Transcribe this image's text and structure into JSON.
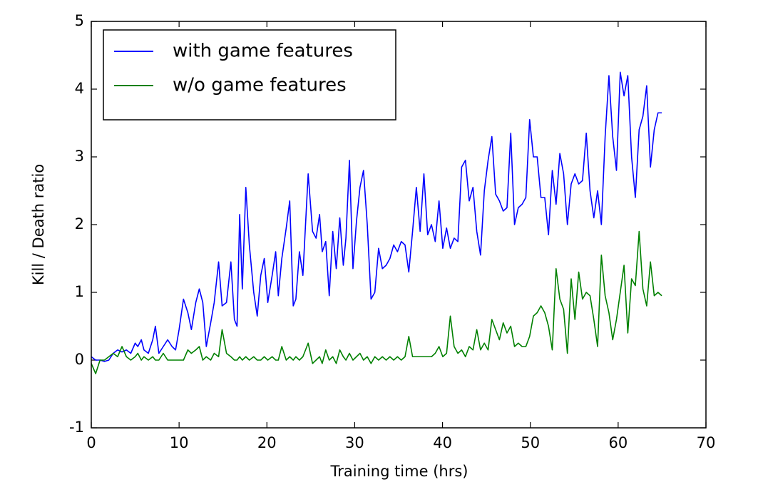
{
  "chart_data": {
    "type": "line",
    "xlabel": "Training time (hrs)",
    "ylabel": "Kill / Death ratio",
    "xlim": [
      0,
      70
    ],
    "xticks": [
      0,
      10,
      20,
      30,
      40,
      50,
      60,
      70
    ],
    "ylim": [
      -1,
      5
    ],
    "yticks": [
      -1,
      0,
      1,
      2,
      3,
      4,
      5
    ],
    "grid": false,
    "legend": "upper left",
    "x": [
      0,
      0.5,
      1,
      1.5,
      2,
      2.5,
      3,
      3.5,
      4,
      4.5,
      5,
      5.3,
      5.7,
      6,
      6.5,
      7,
      7.3,
      7.7,
      8.2,
      8.7,
      9.2,
      9.6,
      10,
      10.5,
      11,
      11.4,
      11.9,
      12.3,
      12.7,
      13.1,
      13.6,
      14,
      14.5,
      14.9,
      15.4,
      15.9,
      16.3,
      16.6,
      16.9,
      17.2,
      17.6,
      18,
      18.5,
      18.9,
      19.3,
      19.7,
      20.1,
      20.6,
      21,
      21.3,
      21.7,
      22.2,
      22.6,
      23,
      23.3,
      23.7,
      24.1,
      24.7,
      25.2,
      25.6,
      26,
      26.3,
      26.7,
      27.1,
      27.5,
      27.9,
      28.3,
      28.7,
      29,
      29.4,
      29.8,
      30.2,
      30.6,
      31,
      31.43,
      31.86,
      32.29,
      32.72,
      33.15,
      33.58,
      34.01,
      34.44,
      34.87,
      35.3,
      35.73,
      36.16,
      36.59,
      37.02,
      37.45,
      37.88,
      38.31,
      38.74,
      39.17,
      39.6,
      40.03,
      40.46,
      40.89,
      41.32,
      41.75,
      42.18,
      42.61,
      43.04,
      43.47,
      43.9,
      44.33,
      44.76,
      45.19,
      45.62,
      46.05,
      46.48,
      46.91,
      47.34,
      47.77,
      48.2,
      48.63,
      49.06,
      49.49,
      49.92,
      50.35,
      50.78,
      51.21,
      51.64,
      52.07,
      52.5,
      52.93,
      53.36,
      53.79,
      54.22,
      54.65,
      55.08,
      55.51,
      55.94,
      56.37,
      56.8,
      57.23,
      57.66,
      58.09,
      58.52,
      58.95,
      59.38,
      59.81,
      60.24,
      60.67,
      61.1,
      61.53,
      61.96,
      62.39,
      62.82,
      63.25,
      63.68,
      64.11,
      64.54,
      64.97
    ],
    "series": [
      {
        "name": "with game features",
        "color": "#0000ff",
        "values": [
          0.05,
          0.0,
          0.0,
          -0.02,
          0.0,
          0.1,
          0.15,
          0.12,
          0.15,
          0.1,
          0.25,
          0.2,
          0.3,
          0.15,
          0.1,
          0.3,
          0.5,
          0.1,
          0.2,
          0.3,
          0.2,
          0.15,
          0.45,
          0.9,
          0.7,
          0.45,
          0.85,
          1.05,
          0.85,
          0.2,
          0.55,
          0.85,
          1.45,
          0.8,
          0.85,
          1.45,
          0.6,
          0.5,
          2.15,
          1.05,
          2.55,
          1.7,
          1.0,
          0.65,
          1.25,
          1.5,
          0.85,
          1.25,
          1.6,
          0.95,
          1.5,
          1.95,
          2.35,
          0.8,
          0.9,
          1.6,
          1.25,
          2.75,
          1.9,
          1.8,
          2.15,
          1.6,
          1.75,
          0.95,
          1.9,
          1.35,
          2.1,
          1.4,
          1.8,
          2.95,
          1.35,
          2.05,
          2.55,
          2.8,
          2.0,
          0.9,
          1.0,
          1.65,
          1.35,
          1.4,
          1.5,
          1.7,
          1.6,
          1.75,
          1.7,
          1.3,
          1.9,
          2.55,
          1.9,
          2.75,
          1.85,
          2.0,
          1.75,
          2.35,
          1.65,
          1.95,
          1.65,
          1.8,
          1.75,
          2.85,
          2.95,
          2.35,
          2.55,
          1.9,
          1.55,
          2.5,
          2.95,
          3.3,
          2.45,
          2.35,
          2.2,
          2.25,
          3.35,
          2.0,
          2.25,
          2.3,
          2.4,
          3.55,
          3.0,
          3.0,
          2.4,
          2.4,
          1.85,
          2.8,
          2.3,
          3.05,
          2.75,
          2.0,
          2.6,
          2.75,
          2.6,
          2.65,
          3.35,
          2.5,
          2.1,
          2.5,
          2.0,
          3.3,
          4.2,
          3.3,
          2.8,
          4.25,
          3.9,
          4.2,
          3.0,
          2.4,
          3.4,
          3.6,
          4.05,
          2.85,
          3.4,
          3.65,
          3.65
        ]
      },
      {
        "name": "w/o game features",
        "color": "#008000",
        "values": [
          -0.05,
          -0.2,
          0.0,
          0.0,
          0.05,
          0.1,
          0.05,
          0.2,
          0.05,
          0.0,
          0.05,
          0.1,
          0.0,
          0.05,
          0.0,
          0.05,
          0.0,
          0.0,
          0.1,
          0.0,
          0.0,
          0.0,
          0.0,
          0.0,
          0.15,
          0.1,
          0.15,
          0.2,
          0.0,
          0.05,
          0.0,
          0.1,
          0.05,
          0.45,
          0.1,
          0.05,
          0.0,
          0.0,
          0.05,
          0.0,
          0.05,
          0.0,
          0.05,
          0.0,
          0.0,
          0.05,
          0.0,
          0.05,
          0.0,
          0.0,
          0.2,
          0.0,
          0.05,
          0.0,
          0.05,
          0.0,
          0.05,
          0.25,
          -0.05,
          0.0,
          0.05,
          -0.05,
          0.15,
          0.0,
          0.05,
          -0.05,
          0.15,
          0.05,
          0.0,
          0.1,
          0.0,
          0.05,
          0.1,
          0.0,
          0.05,
          -0.05,
          0.05,
          0.0,
          0.05,
          0.0,
          0.05,
          0.0,
          0.05,
          0.0,
          0.05,
          0.35,
          0.05,
          0.05,
          0.05,
          0.05,
          0.05,
          0.05,
          0.1,
          0.2,
          0.05,
          0.1,
          0.65,
          0.2,
          0.1,
          0.15,
          0.05,
          0.2,
          0.15,
          0.45,
          0.15,
          0.25,
          0.15,
          0.6,
          0.45,
          0.3,
          0.55,
          0.4,
          0.5,
          0.2,
          0.25,
          0.2,
          0.2,
          0.35,
          0.65,
          0.7,
          0.8,
          0.7,
          0.5,
          0.15,
          1.35,
          0.9,
          0.75,
          0.1,
          1.2,
          0.6,
          1.3,
          0.9,
          1.0,
          0.95,
          0.6,
          0.2,
          1.55,
          0.95,
          0.7,
          0.3,
          0.6,
          1.0,
          1.4,
          0.4,
          1.2,
          1.1,
          1.9,
          1.05,
          0.8,
          1.45,
          0.95,
          1.0,
          0.95
        ]
      }
    ]
  }
}
